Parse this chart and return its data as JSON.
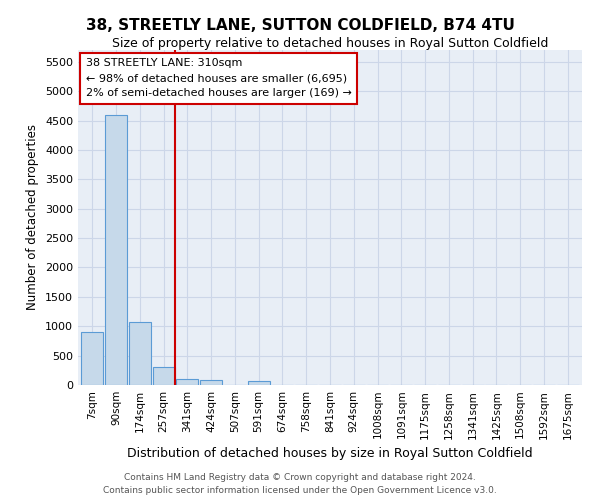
{
  "title": "38, STREETLY LANE, SUTTON COLDFIELD, B74 4TU",
  "subtitle": "Size of property relative to detached houses in Royal Sutton Coldfield",
  "xlabel": "Distribution of detached houses by size in Royal Sutton Coldfield",
  "ylabel": "Number of detached properties",
  "footer_line1": "Contains HM Land Registry data © Crown copyright and database right 2024.",
  "footer_line2": "Contains public sector information licensed under the Open Government Licence v3.0.",
  "annotation_title": "38 STREETLY LANE: 310sqm",
  "annotation_line1": "← 98% of detached houses are smaller (6,695)",
  "annotation_line2": "2% of semi-detached houses are larger (169) →",
  "bar_color": "#c6d9ea",
  "bar_edge_color": "#5b9bd5",
  "annotation_box_color": "#cc0000",
  "grid_color": "#ccd6e8",
  "bg_color": "#e8eef6",
  "categories": [
    "7sqm",
    "90sqm",
    "174sqm",
    "257sqm",
    "341sqm",
    "424sqm",
    "507sqm",
    "591sqm",
    "674sqm",
    "758sqm",
    "841sqm",
    "924sqm",
    "1008sqm",
    "1091sqm",
    "1175sqm",
    "1258sqm",
    "1341sqm",
    "1425sqm",
    "1508sqm",
    "1592sqm",
    "1675sqm"
  ],
  "values": [
    900,
    4600,
    1075,
    300,
    100,
    80,
    0,
    60,
    0,
    0,
    0,
    0,
    0,
    0,
    0,
    0,
    0,
    0,
    0,
    0,
    0
  ],
  "red_line_after_bar": 3,
  "ylim": [
    0,
    5700
  ],
  "yticks": [
    0,
    500,
    1000,
    1500,
    2000,
    2500,
    3000,
    3500,
    4000,
    4500,
    5000,
    5500
  ],
  "title_fontsize": 11,
  "subtitle_fontsize": 9,
  "ylabel_fontsize": 8.5,
  "xlabel_fontsize": 9,
  "ytick_fontsize": 8,
  "xtick_fontsize": 7.5,
  "footer_fontsize": 6.5
}
